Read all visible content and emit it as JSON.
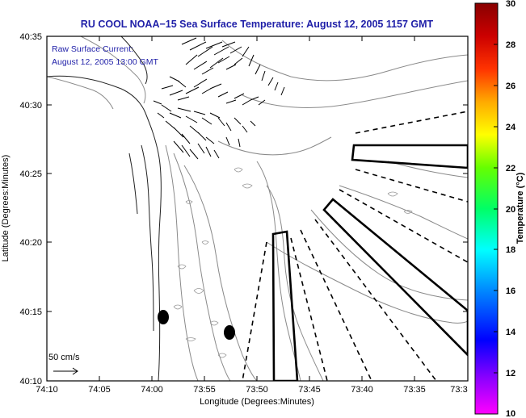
{
  "title": "RU COOL  NOAA−15  Sea Surface Temperature:  August 12, 2005 1157 GMT",
  "legend": {
    "line1": "Raw Surface Current:",
    "line2": "August 12, 2005 13:00 GMT"
  },
  "scale_label": "50 cm/s",
  "axes": {
    "xlabel": "Longitude (Degrees:Minutes)",
    "ylabel": "Latitude (Degrees:Minutes)",
    "xticks": [
      "74:10",
      "74:05",
      "74:00",
      "73:55",
      "73:50",
      "73:45",
      "73:40",
      "73:35",
      "73:3"
    ],
    "yticks": [
      "40:35",
      "40:30",
      "40:25",
      "40:20",
      "40:15",
      "40:10"
    ]
  },
  "colorbar": {
    "label": "Temperature (°C)",
    "ticks": [
      "30",
      "28",
      "26",
      "24",
      "22",
      "20",
      "18",
      "16",
      "14",
      "12",
      "10"
    ],
    "colors": [
      "#ff00ff",
      "#8800ff",
      "#0000ff",
      "#0088ff",
      "#00ffff",
      "#00ff66",
      "#66ff00",
      "#ffff00",
      "#ffaa00",
      "#ff3300",
      "#cc0000",
      "#880000"
    ]
  }
}
